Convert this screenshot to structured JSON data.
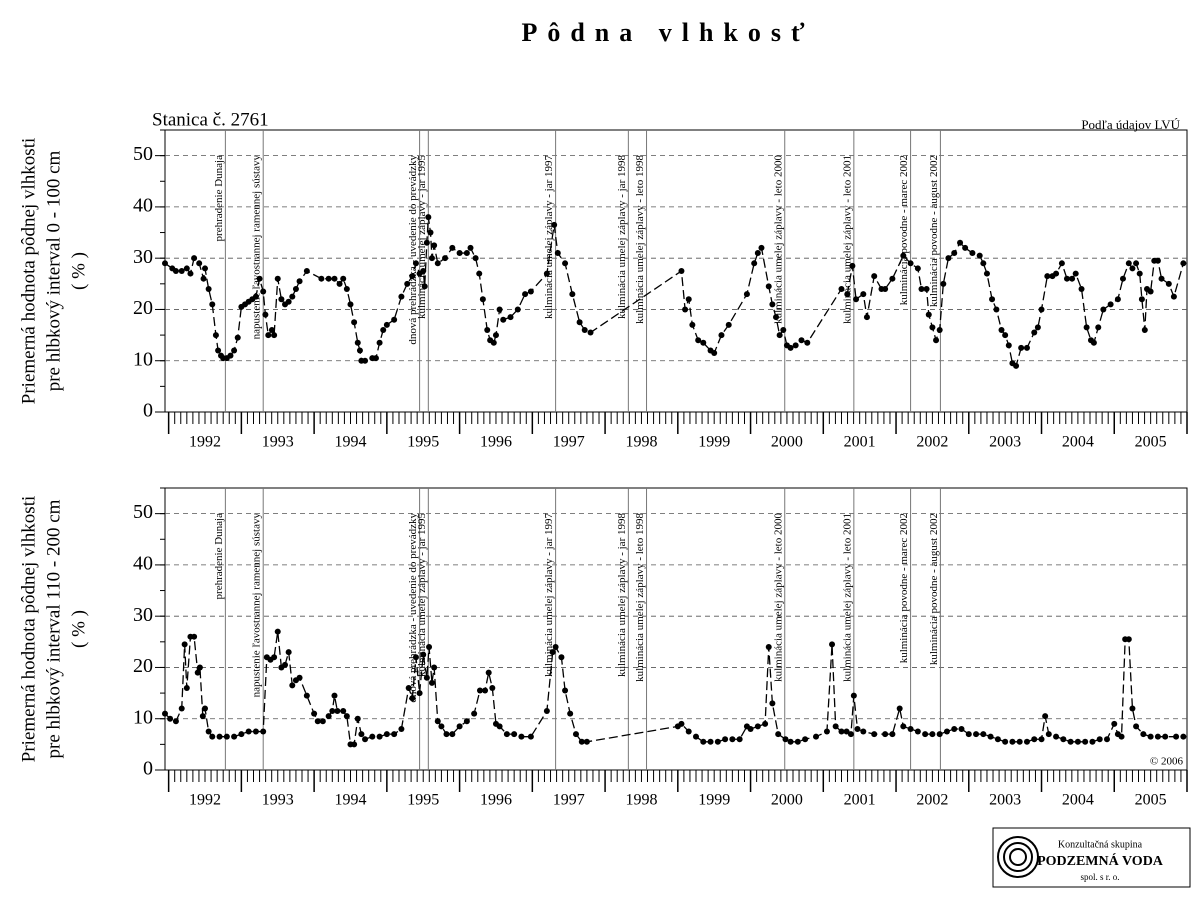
{
  "chart_data": [
    {
      "type": "line",
      "title": "Pôdna vlhkosť",
      "station": "Stanica č. 2761",
      "source": "Podľa údajov LVÚ",
      "ylabel": [
        "Priemerná hodnota pôdnej vlhkosti",
        "pre hlbkový interval 0 - 100 cm",
        "( % )"
      ],
      "color": "#000000",
      "grid": true,
      "xlim": [
        1991.95,
        2006.0
      ],
      "ylim": [
        0,
        55
      ],
      "yticks": [
        0,
        10,
        20,
        30,
        40,
        50
      ],
      "xticks": [
        {
          "value": 1992.5,
          "label": "1992"
        },
        {
          "value": 1993.5,
          "label": "1993"
        },
        {
          "value": 1994.5,
          "label": "1994"
        },
        {
          "value": 1995.5,
          "label": "1995"
        },
        {
          "value": 1996.5,
          "label": "1996"
        },
        {
          "value": 1997.5,
          "label": "1997"
        },
        {
          "value": 1998.5,
          "label": "1998"
        },
        {
          "value": 1999.5,
          "label": "1999"
        },
        {
          "value": 2000.5,
          "label": "2000"
        },
        {
          "value": 2001.5,
          "label": "2001"
        },
        {
          "value": 2002.5,
          "label": "2002"
        },
        {
          "value": 2003.5,
          "label": "2003"
        },
        {
          "value": 2004.5,
          "label": "2004"
        },
        {
          "value": 2005.5,
          "label": "2005"
        }
      ],
      "annotations": [
        {
          "x": 1992.78,
          "text": "prehradenie Dunaja"
        },
        {
          "x": 1993.3,
          "text": "napustenie ľavostrannej ramennej sústavy"
        },
        {
          "x": 1995.45,
          "text": "dnová prehrádzka - uvedenie do prevádzky"
        },
        {
          "x": 1995.57,
          "text": "kulminácia umelej záplavy - jar 1995"
        },
        {
          "x": 1997.32,
          "text": "kulminácia umelej záplavy - jar 1997"
        },
        {
          "x": 1998.32,
          "text": "kulminácia umelej záplavy - jar 1998"
        },
        {
          "x": 1998.57,
          "text": "kulminácia umelej záplavy - leto 1998"
        },
        {
          "x": 2000.47,
          "text": "kulminácia umelej záplavy - leto 2000"
        },
        {
          "x": 2001.42,
          "text": "kulminácia umelej záplavy - leto 2001"
        },
        {
          "x": 2002.2,
          "text": "kulminácia povodne - marec 2002"
        },
        {
          "x": 2002.61,
          "text": "kulminácia povodne - august 2002"
        }
      ],
      "x": [
        1991.95,
        1992.05,
        1992.1,
        1992.18,
        1992.25,
        1992.3,
        1992.35,
        1992.42,
        1992.48,
        1992.5,
        1992.55,
        1992.6,
        1992.65,
        1992.68,
        1992.72,
        1992.75,
        1992.8,
        1992.85,
        1992.9,
        1992.95,
        1993.0,
        1993.05,
        1993.1,
        1993.15,
        1993.2,
        1993.25,
        1993.3,
        1993.33,
        1993.37,
        1993.42,
        1993.45,
        1993.5,
        1993.55,
        1993.6,
        1993.65,
        1993.7,
        1993.75,
        1993.8,
        1993.9,
        1994.1,
        1994.2,
        1994.28,
        1994.35,
        1994.4,
        1994.45,
        1994.5,
        1994.55,
        1994.6,
        1994.63,
        1994.65,
        1994.7,
        1994.8,
        1994.85,
        1994.9,
        1994.95,
        1995.0,
        1995.1,
        1995.2,
        1995.28,
        1995.35,
        1995.4,
        1995.45,
        1995.5,
        1995.52,
        1995.55,
        1995.57,
        1995.6,
        1995.62,
        1995.65,
        1995.7,
        1995.8,
        1995.9,
        1996.0,
        1996.1,
        1996.15,
        1996.22,
        1996.27,
        1996.32,
        1996.38,
        1996.42,
        1996.47,
        1996.5,
        1996.55,
        1996.6,
        1996.7,
        1996.8,
        1996.9,
        1996.98,
        1997.2,
        1997.3,
        1997.35,
        1997.45,
        1997.55,
        1997.65,
        1997.72,
        1997.8,
        1999.05,
        1999.1,
        1999.15,
        1999.2,
        1999.28,
        1999.35,
        1999.45,
        1999.5,
        1999.6,
        1999.7,
        1999.95,
        2000.05,
        2000.1,
        2000.15,
        2000.25,
        2000.3,
        2000.35,
        2000.4,
        2000.45,
        2000.5,
        2000.55,
        2000.62,
        2000.7,
        2000.78,
        2001.25,
        2001.33,
        2001.4,
        2001.45,
        2001.55,
        2001.6,
        2001.7,
        2001.8,
        2001.85,
        2001.95,
        2002.1,
        2002.2,
        2002.3,
        2002.35,
        2002.42,
        2002.45,
        2002.5,
        2002.55,
        2002.6,
        2002.65,
        2002.72,
        2002.8,
        2002.88,
        2002.95,
        2003.05,
        2003.15,
        2003.2,
        2003.25,
        2003.32,
        2003.38,
        2003.45,
        2003.5,
        2003.55,
        2003.6,
        2003.65,
        2003.72,
        2003.8,
        2003.9,
        2003.95,
        2004.0,
        2004.08,
        2004.15,
        2004.2,
        2004.28,
        2004.35,
        2004.42,
        2004.47,
        2004.55,
        2004.62,
        2004.68,
        2004.72,
        2004.78,
        2004.85,
        2004.95,
        2005.05,
        2005.12,
        2005.2,
        2005.25,
        2005.3,
        2005.35,
        2005.38,
        2005.42,
        2005.45,
        2005.5,
        2005.55,
        2005.6,
        2005.65,
        2005.75,
        2005.82,
        2005.95
      ],
      "values": [
        29,
        28,
        27.5,
        27.5,
        28,
        27,
        30,
        29,
        26,
        28,
        24,
        21,
        15,
        12,
        11,
        10.5,
        10.5,
        11,
        12,
        14.5,
        20.5,
        21,
        21.5,
        22,
        22.5,
        26,
        23.5,
        19,
        15,
        16,
        15,
        26,
        22,
        21,
        21.5,
        22.5,
        24,
        25.5,
        27.5,
        26,
        26,
        26,
        25,
        26,
        24,
        21,
        17.5,
        13.5,
        12,
        10,
        10,
        10.5,
        10.5,
        13.5,
        16,
        17,
        18,
        22.5,
        25,
        26.5,
        29,
        27,
        27.5,
        24.5,
        33,
        38,
        35,
        30,
        32.5,
        29,
        30,
        32,
        31,
        31,
        32,
        30,
        27,
        22,
        16,
        14,
        13.5,
        15,
        20,
        18,
        18.5,
        20,
        23,
        23.5,
        27,
        36.5,
        31,
        29,
        23,
        17.5,
        16,
        15.5,
        27.5,
        20,
        22,
        17,
        14,
        13.5,
        12,
        11.5,
        15,
        17,
        23,
        29,
        31,
        32,
        24.5,
        21,
        18.5,
        15,
        16,
        13,
        12.5,
        13,
        14,
        13.5,
        24,
        23,
        28.5,
        22,
        23,
        18.5,
        26.5,
        24,
        24,
        26,
        30.5,
        29,
        28,
        24,
        24,
        19,
        16.5,
        14,
        16,
        25,
        30,
        31,
        33,
        32,
        31,
        30.5,
        29,
        27,
        22,
        20,
        16,
        15,
        13,
        9.5,
        9,
        12.5,
        12.5,
        15.5,
        16.5,
        20,
        26.5,
        26.5,
        27,
        29,
        26,
        26,
        27,
        24,
        16.5,
        14,
        13.5,
        16.5,
        20,
        21,
        22,
        26,
        29,
        28,
        29,
        27,
        22,
        16,
        24,
        23.5,
        29.5,
        29.5,
        26,
        25,
        22.5,
        29
      ]
    },
    {
      "type": "line",
      "copyright": "© 2006",
      "ylabel": [
        "Priemerná hodnota pôdnej vlhkosti",
        "pre hlbkový interval 110 - 200 cm",
        "( % )"
      ],
      "color": "#000000",
      "grid": true,
      "xlim": [
        1991.95,
        2006.0
      ],
      "ylim": [
        0,
        55
      ],
      "yticks": [
        0,
        10,
        20,
        30,
        40,
        50
      ],
      "xticks": [
        {
          "value": 1992.5,
          "label": "1992"
        },
        {
          "value": 1993.5,
          "label": "1993"
        },
        {
          "value": 1994.5,
          "label": "1994"
        },
        {
          "value": 1995.5,
          "label": "1995"
        },
        {
          "value": 1996.5,
          "label": "1996"
        },
        {
          "value": 1997.5,
          "label": "1997"
        },
        {
          "value": 1998.5,
          "label": "1998"
        },
        {
          "value": 1999.5,
          "label": "1999"
        },
        {
          "value": 2000.5,
          "label": "2000"
        },
        {
          "value": 2001.5,
          "label": "2001"
        },
        {
          "value": 2002.5,
          "label": "2002"
        },
        {
          "value": 2003.5,
          "label": "2003"
        },
        {
          "value": 2004.5,
          "label": "2004"
        },
        {
          "value": 2005.5,
          "label": "2005"
        }
      ],
      "annotations": [
        {
          "x": 1992.78,
          "text": "prehradenie Dunaja"
        },
        {
          "x": 1993.3,
          "text": "napustenie ľavostrannej ramennej sústavy"
        },
        {
          "x": 1995.45,
          "text": "dnová prehrádzka - uvedenie do prevádzky"
        },
        {
          "x": 1995.57,
          "text": "kulminácia umelej záplavy - jar 1995"
        },
        {
          "x": 1997.32,
          "text": "kulminácia umelej záplavy - jar 1997"
        },
        {
          "x": 1998.32,
          "text": "kulminácia umelej záplavy - jar 1998"
        },
        {
          "x": 1998.57,
          "text": "kulminácia umelej záplavy - leto 1998"
        },
        {
          "x": 2000.47,
          "text": "kulminácia umelej záplavy - leto 2000"
        },
        {
          "x": 2001.42,
          "text": "kulminácia umelej záplavy - leto 2001"
        },
        {
          "x": 2002.2,
          "text": "kulminácia povodne - marec 2002"
        },
        {
          "x": 2002.61,
          "text": "kulminácia povodne - august 2002"
        }
      ],
      "x": [
        1991.95,
        1992.02,
        1992.1,
        1992.18,
        1992.22,
        1992.25,
        1992.3,
        1992.35,
        1992.4,
        1992.43,
        1992.47,
        1992.5,
        1992.55,
        1992.6,
        1992.7,
        1992.8,
        1992.9,
        1993.0,
        1993.1,
        1993.2,
        1993.3,
        1993.35,
        1993.4,
        1993.45,
        1993.5,
        1993.55,
        1993.6,
        1993.65,
        1993.7,
        1993.75,
        1993.8,
        1993.9,
        1994.0,
        1994.05,
        1994.12,
        1994.2,
        1994.25,
        1994.28,
        1994.32,
        1994.4,
        1994.45,
        1994.5,
        1994.55,
        1994.6,
        1994.65,
        1994.7,
        1994.8,
        1994.9,
        1995.0,
        1995.1,
        1995.2,
        1995.3,
        1995.35,
        1995.4,
        1995.45,
        1995.5,
        1995.55,
        1995.58,
        1995.62,
        1995.65,
        1995.7,
        1995.75,
        1995.82,
        1995.9,
        1996.0,
        1996.1,
        1996.2,
        1996.28,
        1996.35,
        1996.4,
        1996.45,
        1996.5,
        1996.55,
        1996.65,
        1996.75,
        1996.85,
        1996.98,
        1997.2,
        1997.28,
        1997.32,
        1997.4,
        1997.45,
        1997.52,
        1997.6,
        1997.68,
        1997.75,
        1999.0,
        1999.05,
        1999.15,
        1999.25,
        1999.35,
        1999.45,
        1999.55,
        1999.65,
        1999.75,
        1999.85,
        1999.95,
        2000.0,
        2000.1,
        2000.2,
        2000.25,
        2000.3,
        2000.38,
        2000.48,
        2000.55,
        2000.65,
        2000.75,
        2000.9,
        2001.05,
        2001.12,
        2001.17,
        2001.25,
        2001.32,
        2001.38,
        2001.42,
        2001.47,
        2001.55,
        2001.7,
        2001.85,
        2001.95,
        2002.05,
        2002.1,
        2002.2,
        2002.3,
        2002.4,
        2002.5,
        2002.6,
        2002.7,
        2002.8,
        2002.9,
        2003.0,
        2003.1,
        2003.2,
        2003.3,
        2003.4,
        2003.5,
        2003.6,
        2003.7,
        2003.8,
        2003.9,
        2004.0,
        2004.05,
        2004.1,
        2004.2,
        2004.3,
        2004.4,
        2004.5,
        2004.6,
        2004.7,
        2004.8,
        2004.9,
        2005.0,
        2005.05,
        2005.1,
        2005.15,
        2005.2,
        2005.25,
        2005.3,
        2005.4,
        2005.5,
        2005.6,
        2005.7,
        2005.85,
        2005.95
      ],
      "values": [
        11,
        10,
        9.5,
        12,
        24.5,
        16,
        26,
        26,
        19,
        20,
        10.5,
        12,
        7.5,
        6.5,
        6.5,
        6.5,
        6.5,
        7,
        7.5,
        7.5,
        7.5,
        22,
        21.5,
        22,
        27,
        20,
        20.5,
        23,
        16.5,
        17.5,
        18,
        14.5,
        11,
        9.5,
        9.5,
        10.5,
        11.5,
        14.5,
        11.5,
        11.5,
        10.5,
        5,
        5,
        10,
        7,
        6,
        6.5,
        6.5,
        7,
        7,
        8,
        16,
        14,
        22,
        15,
        22.5,
        18,
        24,
        17,
        20,
        9.5,
        8.5,
        7,
        7,
        8.5,
        9.5,
        11,
        15.5,
        15.5,
        19,
        16,
        9,
        8.5,
        7,
        7,
        6.5,
        6.5,
        11.5,
        23,
        24,
        22,
        15.5,
        11,
        7,
        5.5,
        5.5,
        8.5,
        9,
        7.5,
        6.5,
        5.5,
        5.5,
        5.5,
        6,
        6,
        6,
        8.5,
        8,
        8.5,
        9,
        24,
        13,
        7,
        6,
        5.5,
        5.5,
        6,
        6.5,
        7.5,
        24.5,
        8.5,
        7.5,
        7.5,
        7,
        14.5,
        8,
        7.5,
        7,
        7,
        7,
        12,
        8.5,
        8,
        7.5,
        7,
        7,
        7,
        7.5,
        8,
        8,
        7,
        7,
        7,
        6.5,
        6,
        5.5,
        5.5,
        5.5,
        5.5,
        6,
        6,
        10.5,
        7,
        6.5,
        6,
        5.5,
        5.5,
        5.5,
        5.5,
        6,
        6,
        9,
        7,
        6.5,
        25.5,
        25.5,
        12,
        8.5,
        7,
        6.5,
        6.5,
        6.5,
        6.5,
        6.5
      ]
    }
  ],
  "logo": {
    "line1": "Konzultačná skupina",
    "line2": "PODZEMNÁ VODA",
    "line3": "spol. s r. o."
  }
}
